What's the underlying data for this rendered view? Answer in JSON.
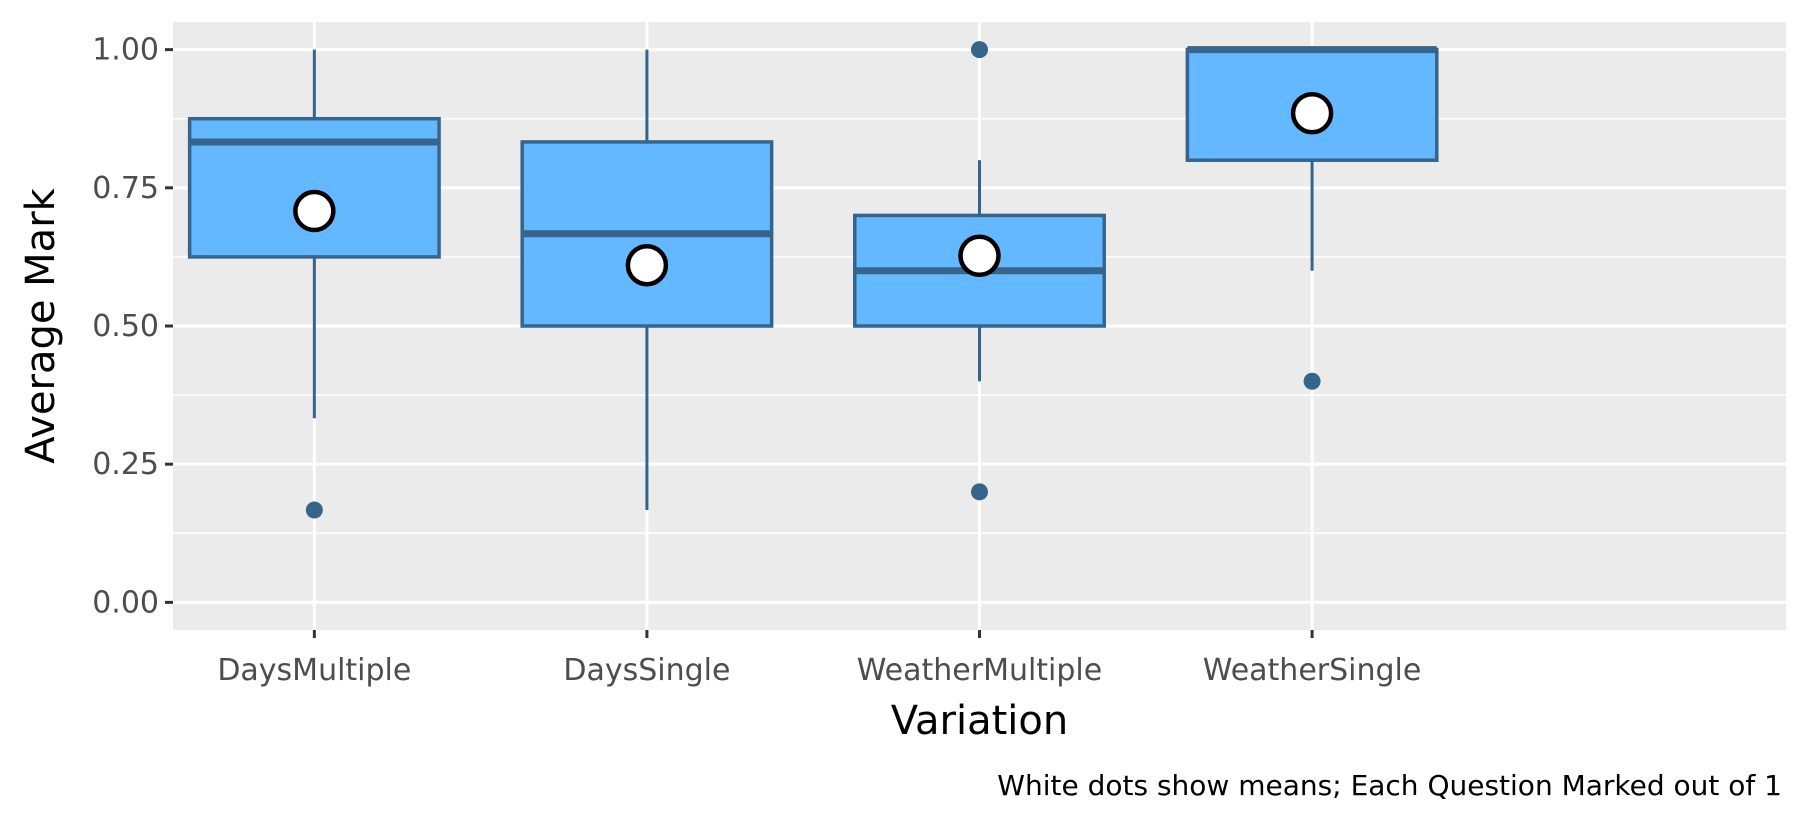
{
  "chart_data": {
    "type": "boxplot",
    "title": "",
    "xlabel": "Variation",
    "ylabel": "Average Mark",
    "caption": "White dots show means; Each Question Marked out of 1",
    "ylim": [
      -0.05,
      1.05
    ],
    "yticks": [
      0,
      0.25,
      0.5,
      0.75,
      1
    ],
    "ytick_labels": [
      "0.00",
      "0.25",
      "0.50",
      "0.75",
      "1.00"
    ],
    "grid": true,
    "categories": [
      "DaysMultiple",
      "DaysSingle",
      "WeatherMultiple",
      "WeatherSingle"
    ],
    "boxes": [
      {
        "category": "DaysMultiple",
        "q1": 0.625,
        "median": 0.833,
        "q3": 0.875,
        "whisker_low": 0.333,
        "whisker_high": 1.0,
        "outliers": [
          0.167
        ],
        "mean": 0.708
      },
      {
        "category": "DaysSingle",
        "q1": 0.5,
        "median": 0.667,
        "q3": 0.833,
        "whisker_low": 0.167,
        "whisker_high": 1.0,
        "outliers": [],
        "mean": 0.61
      },
      {
        "category": "WeatherMultiple",
        "q1": 0.5,
        "median": 0.6,
        "q3": 0.7,
        "whisker_low": 0.4,
        "whisker_high": 0.8,
        "outliers": [
          1.0,
          0.2
        ],
        "mean": 0.627
      },
      {
        "category": "WeatherSingle",
        "q1": 0.8,
        "median": 1.0,
        "q3": 1.0,
        "whisker_low": 0.6,
        "whisker_high": 1.0,
        "outliers": [
          0.4
        ],
        "mean": 0.885
      }
    ],
    "colors": {
      "panel_background": "#ebebeb",
      "grid": "#ffffff",
      "box_fill": "#63b8ff",
      "box_line": "#36648b",
      "mean_fill": "#ffffff",
      "mean_stroke": "#000000"
    }
  }
}
